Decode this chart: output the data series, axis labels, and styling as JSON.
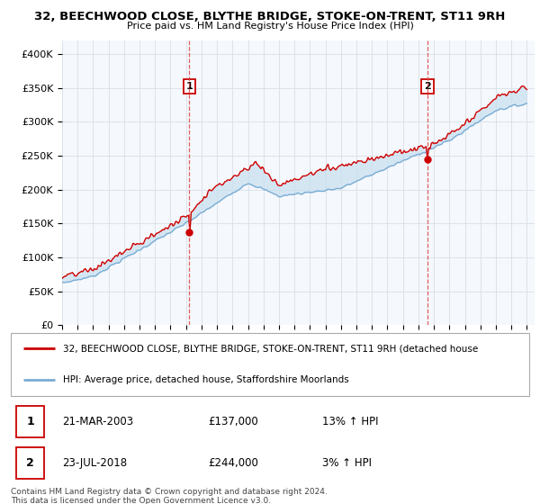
{
  "title": "32, BEECHWOOD CLOSE, BLYTHE BRIDGE, STOKE-ON-TRENT, ST11 9RH",
  "subtitle": "Price paid vs. HM Land Registry's House Price Index (HPI)",
  "legend_line1": "32, BEECHWOOD CLOSE, BLYTHE BRIDGE, STOKE-ON-TRENT, ST11 9RH (detached house",
  "legend_line2": "HPI: Average price, detached house, Staffordshire Moorlands",
  "transaction1_date": "21-MAR-2003",
  "transaction1_price": "£137,000",
  "transaction1_hpi": "13% ↑ HPI",
  "transaction2_date": "23-JUL-2018",
  "transaction2_price": "£244,000",
  "transaction2_hpi": "3% ↑ HPI",
  "footnote": "Contains HM Land Registry data © Crown copyright and database right 2024.\nThis data is licensed under the Open Government Licence v3.0.",
  "ylim": [
    0,
    420000
  ],
  "yticks": [
    0,
    50000,
    100000,
    150000,
    200000,
    250000,
    300000,
    350000,
    400000
  ],
  "ytick_labels": [
    "£0",
    "£50K",
    "£100K",
    "£150K",
    "£200K",
    "£250K",
    "£300K",
    "£350K",
    "£400K"
  ],
  "line_color_red": "#cc0000",
  "line_color_blue": "#7aadd4",
  "fill_color_blue": "#c8dff0",
  "vline_color": "#dd4444",
  "marker_color_red": "#cc0000",
  "plot_bg_color": "#f5f8fc",
  "grid_color": "#d8dfe8",
  "box_color": "#cc0000",
  "year_start": 1995,
  "year_end": 2025,
  "transaction1_year": 2003.22,
  "transaction2_year": 2018.56,
  "label1_value": 350000,
  "label2_value": 350000
}
